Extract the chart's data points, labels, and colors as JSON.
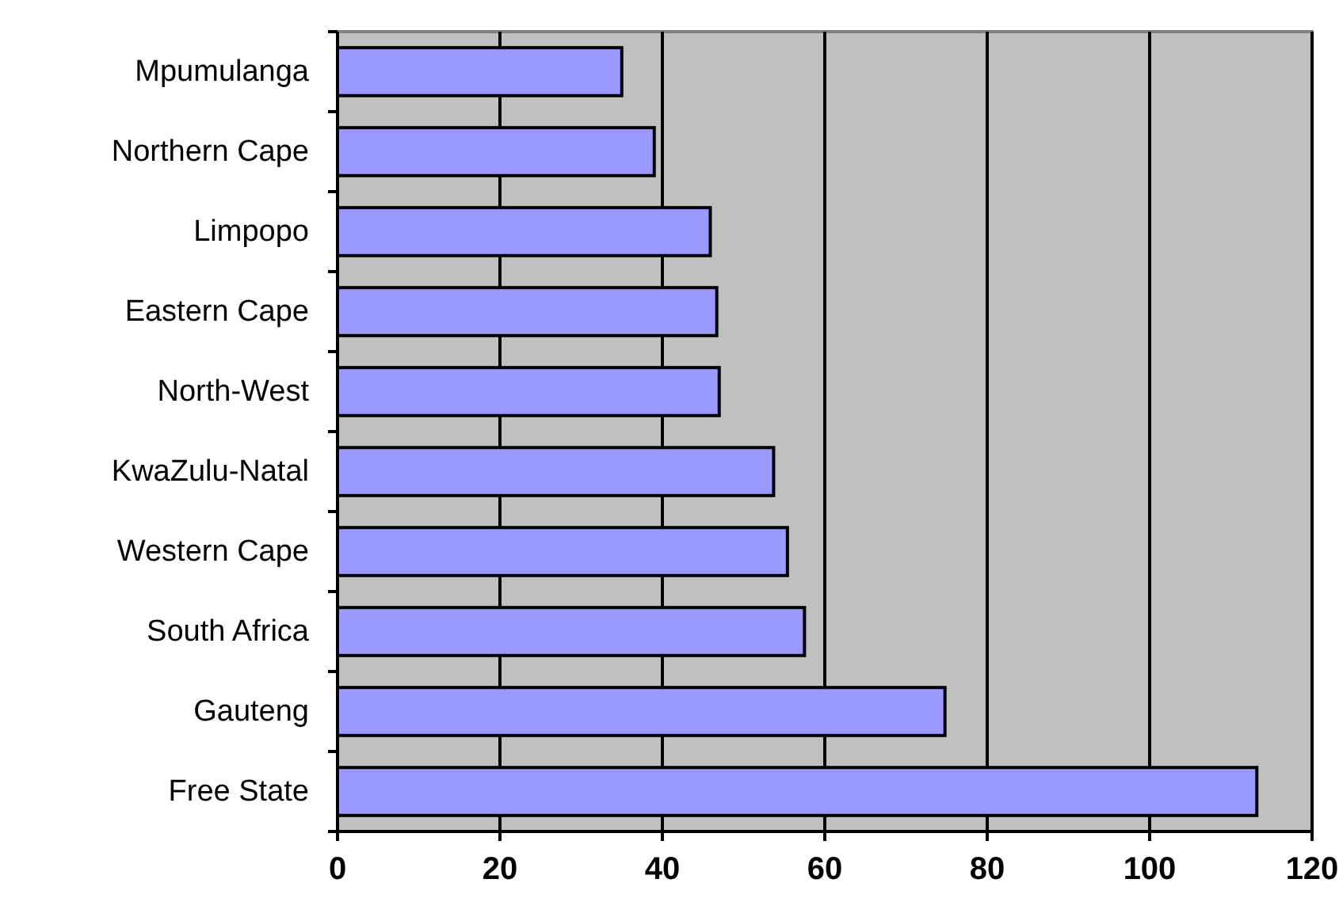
{
  "chart_data": {
    "type": "bar",
    "orientation": "horizontal",
    "categories": [
      "Mpumulanga",
      "Northern Cape",
      "Limpopo",
      "Eastern Cape",
      "North-West",
      "KwaZulu-Natal",
      "Western Cape",
      "South Africa",
      "Gauteng",
      "Free State"
    ],
    "values": [
      35,
      39,
      45.9,
      46.7,
      47,
      53.7,
      55.4,
      57.5,
      74.8,
      113.2
    ],
    "color": "#9999ff",
    "xlim": [
      0,
      120
    ],
    "xticks": [
      0,
      20,
      40,
      60,
      80,
      100,
      120
    ],
    "grid": "x"
  }
}
